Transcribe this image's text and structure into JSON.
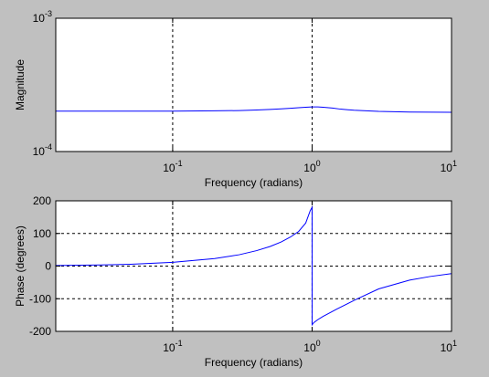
{
  "colors": {
    "figure_background": "#c0c0c0",
    "axes_background": "#ffffff",
    "line": "#0000ff",
    "axis": "#000000"
  },
  "chart_data": [
    {
      "type": "line",
      "xscale": "log",
      "yscale": "log",
      "xlim": [
        0.0145,
        10
      ],
      "ylim": [
        0.0001,
        0.001
      ],
      "xlabel": "Frequency (radians)",
      "ylabel": "Magnitude",
      "grid": {
        "x": true,
        "y": false,
        "style": "dashed"
      },
      "xticks": [
        {
          "value": 0.1,
          "base": "10",
          "exp": "-1"
        },
        {
          "value": 1,
          "base": "10",
          "exp": "0"
        },
        {
          "value": 10,
          "base": "10",
          "exp": "1"
        }
      ],
      "yticks": [
        {
          "value": 0.0001,
          "base": "10",
          "exp": "-4"
        },
        {
          "value": 0.001,
          "base": "10",
          "exp": "-3"
        }
      ],
      "series": [
        {
          "x": [
            0.0145,
            0.02,
            0.05,
            0.1,
            0.2,
            0.3,
            0.4,
            0.5,
            0.6,
            0.7,
            0.8,
            0.9,
            1.0,
            1.1,
            1.2,
            1.4,
            1.6,
            2,
            3,
            5,
            10
          ],
          "y": [
            0.000201,
            0.000201,
            0.000201,
            0.000201,
            0.000202,
            0.000203,
            0.000205,
            0.000207,
            0.000209,
            0.000211,
            0.000213,
            0.000215,
            0.000216,
            0.000216,
            0.000215,
            0.000212,
            0.000208,
            0.000204,
            0.0002,
            0.000198,
            0.000197
          ]
        }
      ]
    },
    {
      "type": "line",
      "xscale": "log",
      "yscale": "linear",
      "xlim": [
        0.0145,
        10
      ],
      "ylim": [
        -200,
        200
      ],
      "xlabel": "Frequency (radians)",
      "ylabel": "Phase (degrees)",
      "grid": {
        "x": true,
        "y": true,
        "style": "dashed"
      },
      "xticks": [
        {
          "value": 0.1,
          "base": "10",
          "exp": "-1"
        },
        {
          "value": 1,
          "base": "10",
          "exp": "0"
        },
        {
          "value": 10,
          "base": "10",
          "exp": "1"
        }
      ],
      "yticks": [
        {
          "value": 200,
          "label": "200"
        },
        {
          "value": 100,
          "label": "100"
        },
        {
          "value": 0,
          "label": "0"
        },
        {
          "value": -100,
          "label": "-100"
        },
        {
          "value": -200,
          "label": "-200"
        }
      ],
      "series": [
        {
          "x": [
            0.0145,
            0.03,
            0.05,
            0.1,
            0.2,
            0.3,
            0.4,
            0.5,
            0.6,
            0.7,
            0.8,
            0.9,
            0.97,
            1.0,
            1.0,
            1.03,
            1.1,
            1.2,
            1.5,
            2,
            3,
            5,
            7,
            10
          ],
          "y": [
            1.7,
            3.4,
            5.7,
            11.4,
            23.1,
            34.8,
            47.4,
            60.1,
            74,
            89.2,
            106,
            132,
            170,
            180,
            -180,
            -173,
            -164,
            -154,
            -132,
            -105,
            -70,
            -43,
            -32,
            -23
          ]
        }
      ]
    }
  ]
}
